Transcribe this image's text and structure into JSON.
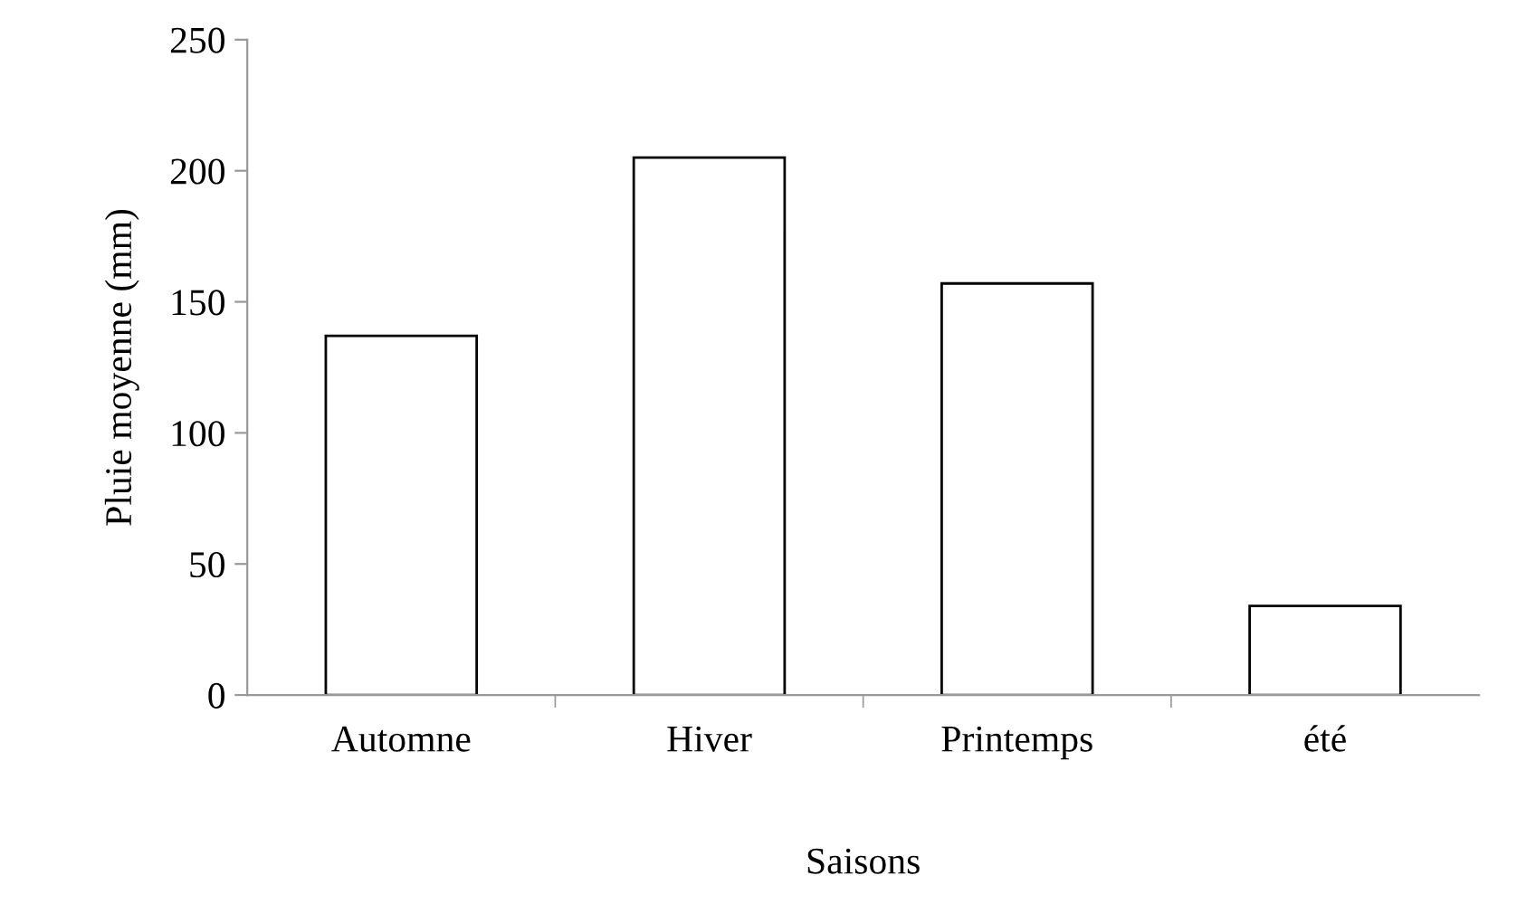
{
  "chart_data": {
    "type": "bar",
    "xlabel": "Saisons",
    "ylabel": "Pluie moyenne (mm)",
    "categories": [
      "Automne",
      "Hiver",
      "Printemps",
      "été"
    ],
    "series": [
      {
        "color": "#ffffff",
        "values": [
          137,
          205,
          157,
          34
        ]
      }
    ],
    "ylim": [
      0,
      250
    ],
    "yticks": [
      0,
      50,
      100,
      150,
      200,
      250
    ],
    "grid": false,
    "legend": false
  }
}
